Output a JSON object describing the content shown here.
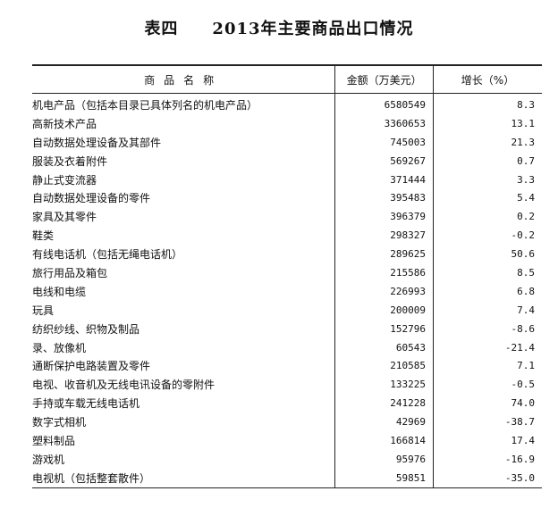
{
  "title": "表四　　2013年主要商品出口情况",
  "headers": {
    "name": "商品名称",
    "value": "金额（万美元）",
    "growth": "增长（%）"
  },
  "rows": [
    {
      "name": "机电产品（包括本目录已具体列名的机电产品）",
      "value": "6580549",
      "growth": "8.3"
    },
    {
      "name": "高新技术产品",
      "value": "3360653",
      "growth": "13.1"
    },
    {
      "name": "自动数据处理设备及其部件",
      "value": "745003",
      "growth": "21.3"
    },
    {
      "name": "服装及衣着附件",
      "value": "569267",
      "growth": "0.7"
    },
    {
      "name": "静止式变流器",
      "value": "371444",
      "growth": "3.3"
    },
    {
      "name": "自动数据处理设备的零件",
      "value": "395483",
      "growth": "5.4"
    },
    {
      "name": "家具及其零件",
      "value": "396379",
      "growth": "0.2"
    },
    {
      "name": "鞋类",
      "value": "298327",
      "growth": "-0.2"
    },
    {
      "name": "有线电话机（包括无绳电话机）",
      "value": "289625",
      "growth": "50.6"
    },
    {
      "name": "旅行用品及箱包",
      "value": "215586",
      "growth": "8.5"
    },
    {
      "name": "电线和电缆",
      "value": "226993",
      "growth": "6.8"
    },
    {
      "name": "玩具",
      "value": "200009",
      "growth": "7.4"
    },
    {
      "name": "纺织纱线、织物及制品",
      "value": "152796",
      "growth": "-8.6"
    },
    {
      "name": "录、放像机",
      "value": "60543",
      "growth": "-21.4"
    },
    {
      "name": "通断保护电路装置及零件",
      "value": "210585",
      "growth": "7.1"
    },
    {
      "name": "电视、收音机及无线电讯设备的零附件",
      "value": "133225",
      "growth": "-0.5"
    },
    {
      "name": "手持或车载无线电话机",
      "value": "241228",
      "growth": "74.0"
    },
    {
      "name": "数字式相机",
      "value": "42969",
      "growth": "-38.7"
    },
    {
      "name": "塑料制品",
      "value": "166814",
      "growth": "17.4"
    },
    {
      "name": "游戏机",
      "value": "95976",
      "growth": "-16.9"
    },
    {
      "name": "电视机（包括整套散件）",
      "value": "59851",
      "growth": "-35.0"
    }
  ]
}
